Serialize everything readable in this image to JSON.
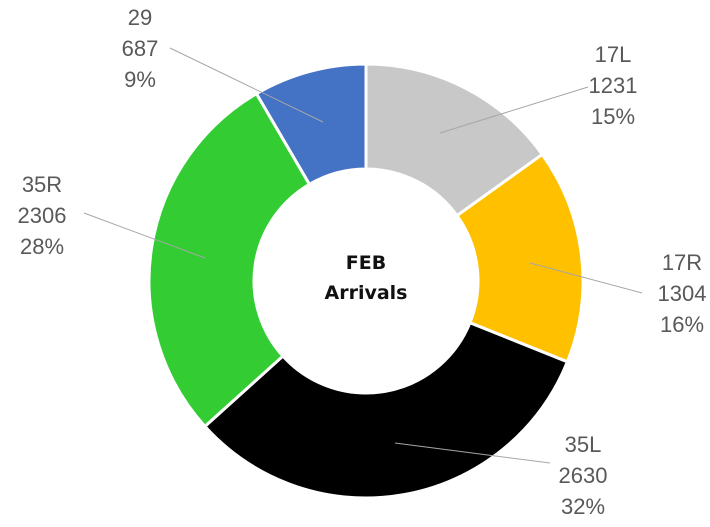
{
  "chart_data": {
    "type": "donut",
    "title": "FEB Arrivals",
    "categories": [
      "17L",
      "17R",
      "35L",
      "35R",
      "29"
    ],
    "values": [
      1231,
      1304,
      2630,
      2306,
      687
    ],
    "percent_labels": [
      "15%",
      "16%",
      "32%",
      "28%",
      "9%"
    ],
    "colors": [
      "#c8c8c8",
      "#ffc000",
      "#000000",
      "#33cc33",
      "#4472c4"
    ]
  }
}
